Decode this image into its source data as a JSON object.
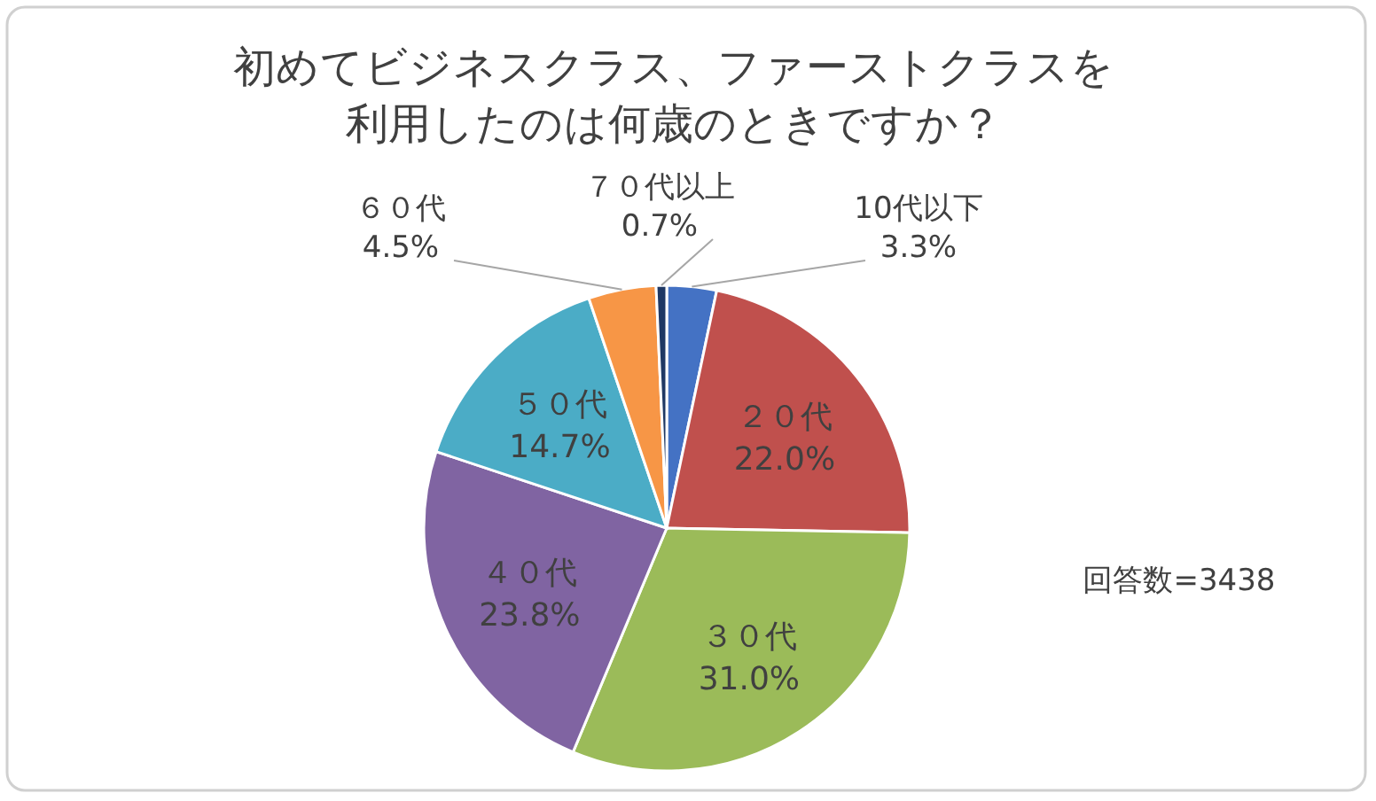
{
  "chart_data": {
    "type": "pie",
    "title": "初めてビジネスクラス、ファーストクラスを利用したのは何歳のときですか？",
    "categories": [
      "10代以下",
      "２０代",
      "３０代",
      "４０代",
      "５０代",
      "６０代",
      "７０代以上"
    ],
    "values": [
      3.3,
      22.0,
      31.0,
      23.8,
      14.7,
      4.5,
      0.7
    ],
    "colors": [
      "#4472c4",
      "#c0504d",
      "#9bbb59",
      "#8064a2",
      "#4bacc6",
      "#f79646",
      "#1f3864"
    ],
    "value_labels": [
      "3.3%",
      "22.0%",
      "31.0%",
      "23.8%",
      "14.7%",
      "4.5%",
      "0.7%"
    ],
    "annotations": [
      "回答数=3438"
    ]
  }
}
